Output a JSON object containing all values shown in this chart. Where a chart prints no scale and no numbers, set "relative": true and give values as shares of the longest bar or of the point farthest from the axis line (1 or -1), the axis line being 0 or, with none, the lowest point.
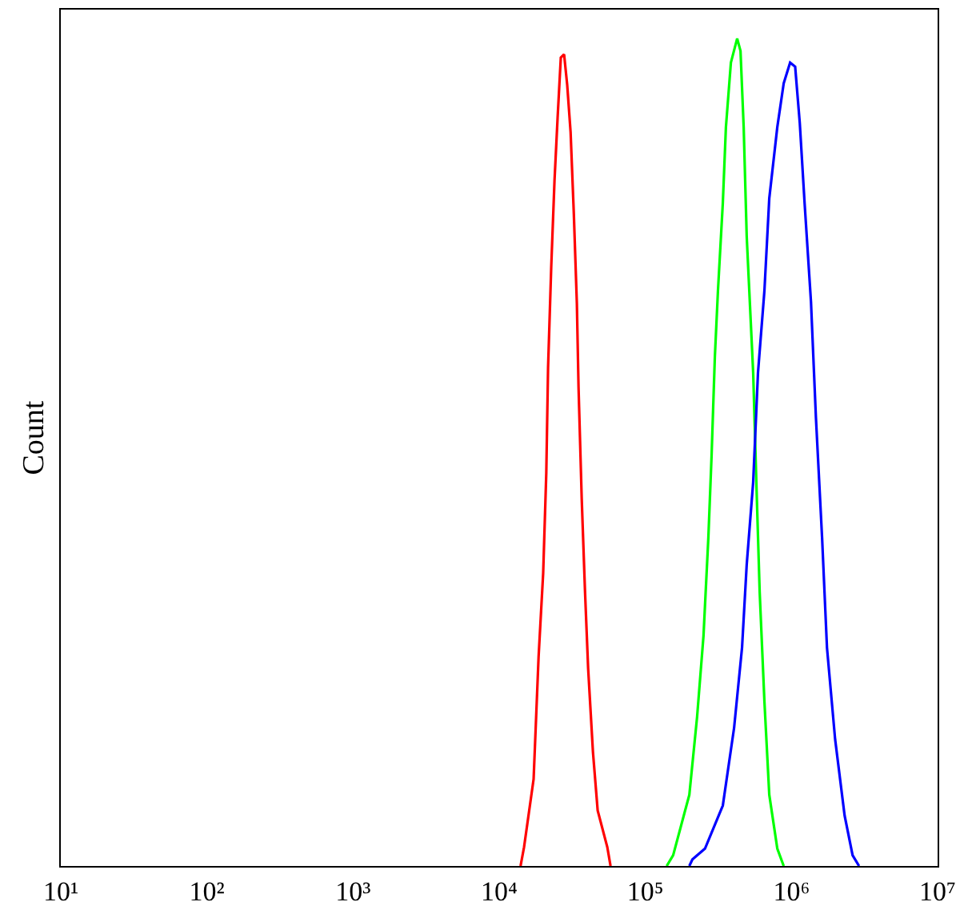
{
  "chart_data": {
    "type": "line",
    "ylabel": "Count",
    "relative": true,
    "log": "x",
    "marker": "none",
    "line_style": "solid",
    "xlim": [
      10,
      10000000
    ],
    "xticks": [
      {
        "value": 10,
        "label": "10¹"
      },
      {
        "value": 100,
        "label": "10²"
      },
      {
        "value": 1000,
        "label": "10³"
      },
      {
        "value": 10000,
        "label": "10⁴"
      },
      {
        "value": 100000,
        "label": "10⁵"
      },
      {
        "value": 1000000,
        "label": "10⁶"
      },
      {
        "value": 10000000,
        "label": "10⁷"
      }
    ],
    "series": [
      {
        "color": "#ff0000",
        "x": [
          14000,
          14800,
          17200,
          18600,
          20000,
          21000,
          21600,
          22700,
          23900,
          25100,
          26400,
          27800,
          29200,
          30800,
          32400,
          34000,
          34900,
          36700,
          38600,
          40600,
          43800,
          47200,
          54900,
          57800
        ],
        "values": [
          0,
          0.023,
          0.105,
          0.253,
          0.354,
          0.475,
          0.603,
          0.724,
          0.828,
          0.904,
          0.977,
          0.981,
          0.944,
          0.887,
          0.789,
          0.68,
          0.579,
          0.444,
          0.335,
          0.239,
          0.138,
          0.067,
          0.023,
          0
        ]
      },
      {
        "color": "#00ff00",
        "x": [
          140000,
          155000,
          200000,
          226000,
          250000,
          270000,
          284000,
          299000,
          314000,
          339000,
          356000,
          385000,
          425000,
          448000,
          471000,
          494000,
          547000,
          575000,
          606000,
          653000,
          705000,
          800000,
          885000
        ],
        "values": [
          0,
          0.013,
          0.086,
          0.18,
          0.278,
          0.397,
          0.496,
          0.615,
          0.695,
          0.801,
          0.893,
          0.971,
          1,
          0.985,
          0.893,
          0.761,
          0.596,
          0.464,
          0.331,
          0.199,
          0.086,
          0.021,
          0
        ]
      },
      {
        "color": "#0000ff",
        "x": [
          200000,
          210000,
          256000,
          339000,
          405000,
          459000,
          494000,
          547000,
          590000,
          653000,
          705000,
          800000,
          885000,
          979000,
          1060000,
          1140000,
          1230000,
          1360000,
          1470000,
          1620000,
          1750000,
          1990000,
          2310000,
          2620000,
          2900000
        ],
        "values": [
          0,
          0.008,
          0.021,
          0.073,
          0.167,
          0.264,
          0.364,
          0.464,
          0.596,
          0.695,
          0.807,
          0.893,
          0.946,
          0.971,
          0.966,
          0.898,
          0.801,
          0.682,
          0.542,
          0.397,
          0.264,
          0.153,
          0.061,
          0.013,
          0
        ]
      }
    ]
  }
}
